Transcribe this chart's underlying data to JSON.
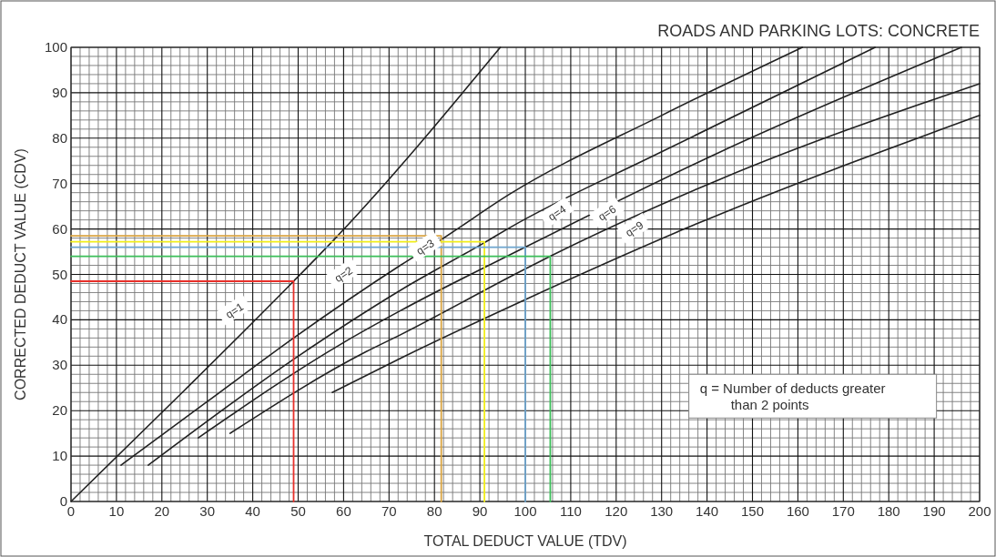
{
  "chart_data": {
    "type": "line",
    "title": "ROADS AND PARKING LOTS: CONCRETE",
    "xlabel": "TOTAL DEDUCT VALUE (TDV)",
    "ylabel": "CORRECTED DEDUCT VALUE (CDV)",
    "xlim": [
      0,
      200
    ],
    "ylim": [
      0,
      100
    ],
    "xticks": [
      0,
      10,
      20,
      30,
      40,
      50,
      60,
      70,
      80,
      90,
      100,
      110,
      120,
      130,
      140,
      150,
      160,
      170,
      180,
      190,
      200
    ],
    "yticks": [
      0,
      10,
      20,
      30,
      40,
      50,
      60,
      70,
      80,
      90,
      100
    ],
    "grid": true,
    "marker": "none",
    "line_style": "solid",
    "series": [
      {
        "color": "#222222",
        "x": [
          0,
          25,
          49,
          58.5,
          94.5
        ],
        "values": [
          0,
          24.5,
          48.5,
          58.3,
          100
        ]
      },
      {
        "color": "#222222",
        "x": [
          11,
          30,
          49,
          72.5,
          82,
          96.6,
          130,
          161
        ],
        "values": [
          8,
          22,
          36,
          52,
          58,
          67.7,
          85,
          100
        ]
      },
      {
        "color": "#222222",
        "x": [
          17,
          50,
          72.5,
          91,
          96.6,
          130,
          177
        ],
        "values": [
          8,
          32,
          46.5,
          57,
          60.3,
          77,
          100
        ]
      },
      {
        "color": "#222222",
        "x": [
          28,
          60,
          72.5,
          100,
          143,
          196
        ],
        "values": [
          14,
          35,
          42,
          56,
          77,
          100
        ]
      },
      {
        "color": "#222222",
        "x": [
          35,
          65,
          72.5,
          99,
          105.5,
          143,
          200
        ],
        "values": [
          15,
          33,
          36.7,
          50.7,
          54,
          71,
          92
        ]
      },
      {
        "color": "#222222",
        "x": [
          57.5,
          72.5,
          99,
          135,
          200
        ],
        "values": [
          24,
          31.5,
          44,
          60,
          85
        ]
      },
      {
        "color": "#e8302a",
        "x": [
          0,
          49,
          49
        ],
        "values": [
          48.5,
          48.5,
          0
        ]
      },
      {
        "color": "#d9a441",
        "x": [
          0,
          81.5,
          81.5
        ],
        "values": [
          58.5,
          58.5,
          0
        ]
      },
      {
        "color": "#f2ee1a",
        "x": [
          0,
          91,
          91
        ],
        "values": [
          57.2,
          57.2,
          0
        ]
      },
      {
        "color": "#6fa6cf",
        "x": [
          0,
          100,
          100
        ],
        "values": [
          56,
          56,
          0
        ]
      },
      {
        "color": "#3cbf5a",
        "x": [
          0,
          105.5,
          105.5
        ],
        "values": [
          54,
          54,
          0
        ]
      }
    ],
    "annotations": [
      {
        "text": "q=1",
        "x": 36,
        "y": 42
      },
      {
        "text": "q=2",
        "x": 60,
        "y": 50
      },
      {
        "text": "q=3",
        "x": 78,
        "y": 56
      },
      {
        "text": "q=4",
        "x": 107,
        "y": 63.5
      },
      {
        "text": "q=6",
        "x": 118,
        "y": 63.5
      },
      {
        "text": "q=9",
        "x": 124,
        "y": 60
      },
      "q = Number of deducts greater than 2 points"
    ]
  }
}
